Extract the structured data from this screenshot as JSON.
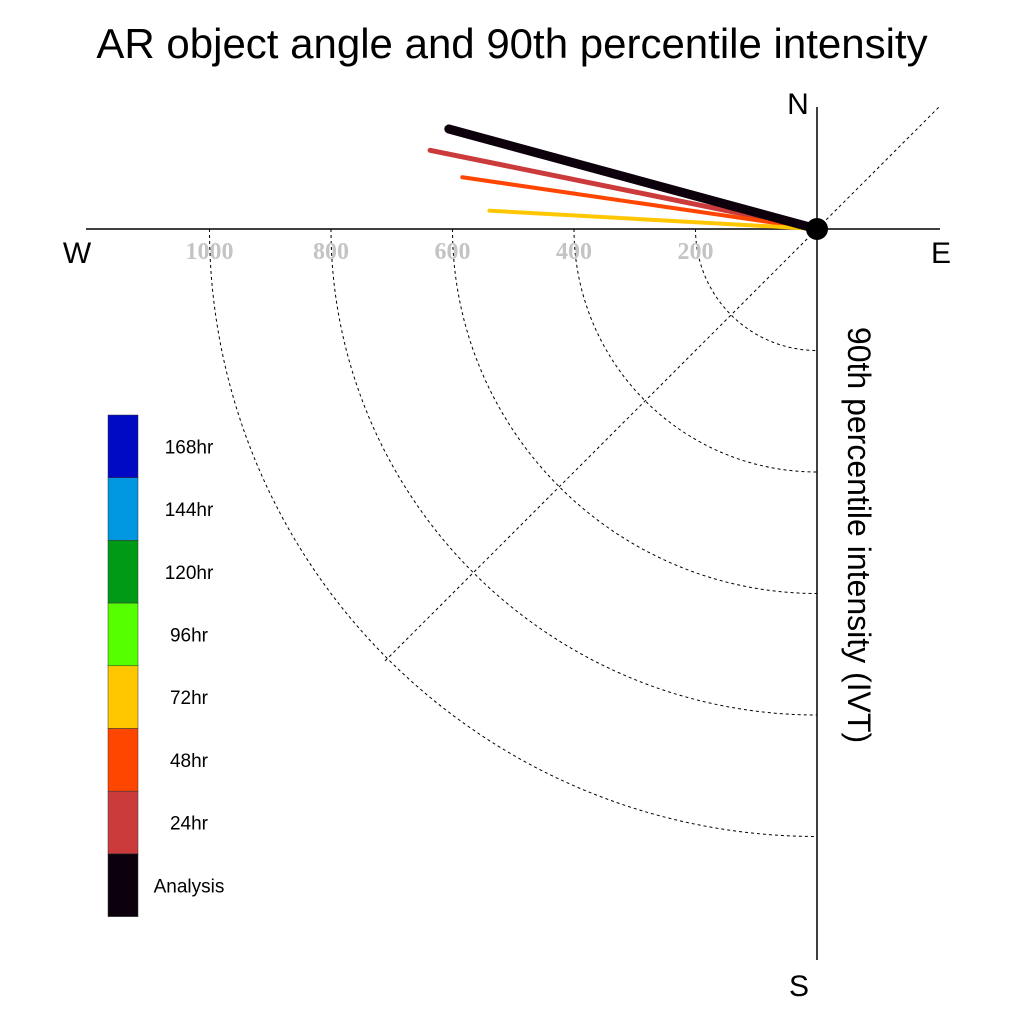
{
  "chart_data": {
    "type": "polar-vector",
    "title": "AR object angle and 90th percentile intensity",
    "radial_label": "90th percentile intensity (IVT)",
    "directions": {
      "north": "N",
      "south": "S",
      "east": "E",
      "west": "W"
    },
    "radial_ticks": [
      "1000",
      "800",
      "600",
      "400",
      "200"
    ],
    "radial_tick_values": [
      1000,
      800,
      600,
      400,
      200
    ],
    "r_max": 1000,
    "legend_placement": "left",
    "legend": [
      {
        "label": "168hr",
        "color": "#0009c3"
      },
      {
        "label": "144hr",
        "color": "#0096e0"
      },
      {
        "label": "120hr",
        "color": "#009a17"
      },
      {
        "label": "96hr",
        "color": "#56ff00"
      },
      {
        "label": "72hr",
        "color": "#ffc700"
      },
      {
        "label": "48hr",
        "color": "#ff4600"
      },
      {
        "label": "24hr",
        "color": "#cb3b3b"
      },
      {
        "label": "Analysis",
        "color": "#0d000d"
      }
    ],
    "series": [
      {
        "name": "24hr",
        "intensity": 650,
        "angle_deg": 168.5,
        "color": "#cb3b3b"
      },
      {
        "name": "48hr",
        "intensity": 590,
        "angle_deg": 171.7,
        "color": "#ff4600"
      },
      {
        "name": "72hr",
        "intensity": 540,
        "angle_deg": 176.8,
        "color": "#ffc700"
      },
      {
        "name": "Analysis",
        "intensity": 628,
        "angle_deg": 164.8,
        "color": "#0d000d"
      }
    ]
  }
}
